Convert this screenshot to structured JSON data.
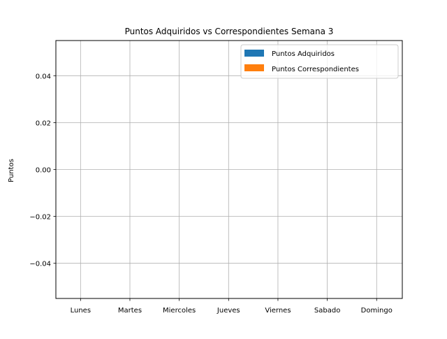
{
  "chart_data": {
    "type": "bar",
    "title": "Puntos Adquiridos vs Correspondientes Semana 3",
    "xlabel": "",
    "ylabel": "Puntos",
    "categories": [
      "Lunes",
      "Martes",
      "Miercoles",
      "Jueves",
      "Viernes",
      "Sabado",
      "Domingo"
    ],
    "series": [
      {
        "name": "Puntos Adquiridos",
        "color": "#1f77b4",
        "values": [
          0,
          0,
          0,
          0,
          0,
          0,
          0
        ]
      },
      {
        "name": "Puntos Correspondientes",
        "color": "#ff7f0e",
        "values": [
          0,
          0,
          0,
          0,
          0,
          0,
          0
        ]
      }
    ],
    "ylim": [
      -0.055,
      0.055
    ],
    "yticks": [
      -0.04,
      -0.02,
      0.0,
      0.02,
      0.04
    ],
    "ytick_labels": [
      "−0.04",
      "−0.02",
      "0.00",
      "0.02",
      "0.04"
    ],
    "grid": true,
    "legend_position": "top-right"
  }
}
